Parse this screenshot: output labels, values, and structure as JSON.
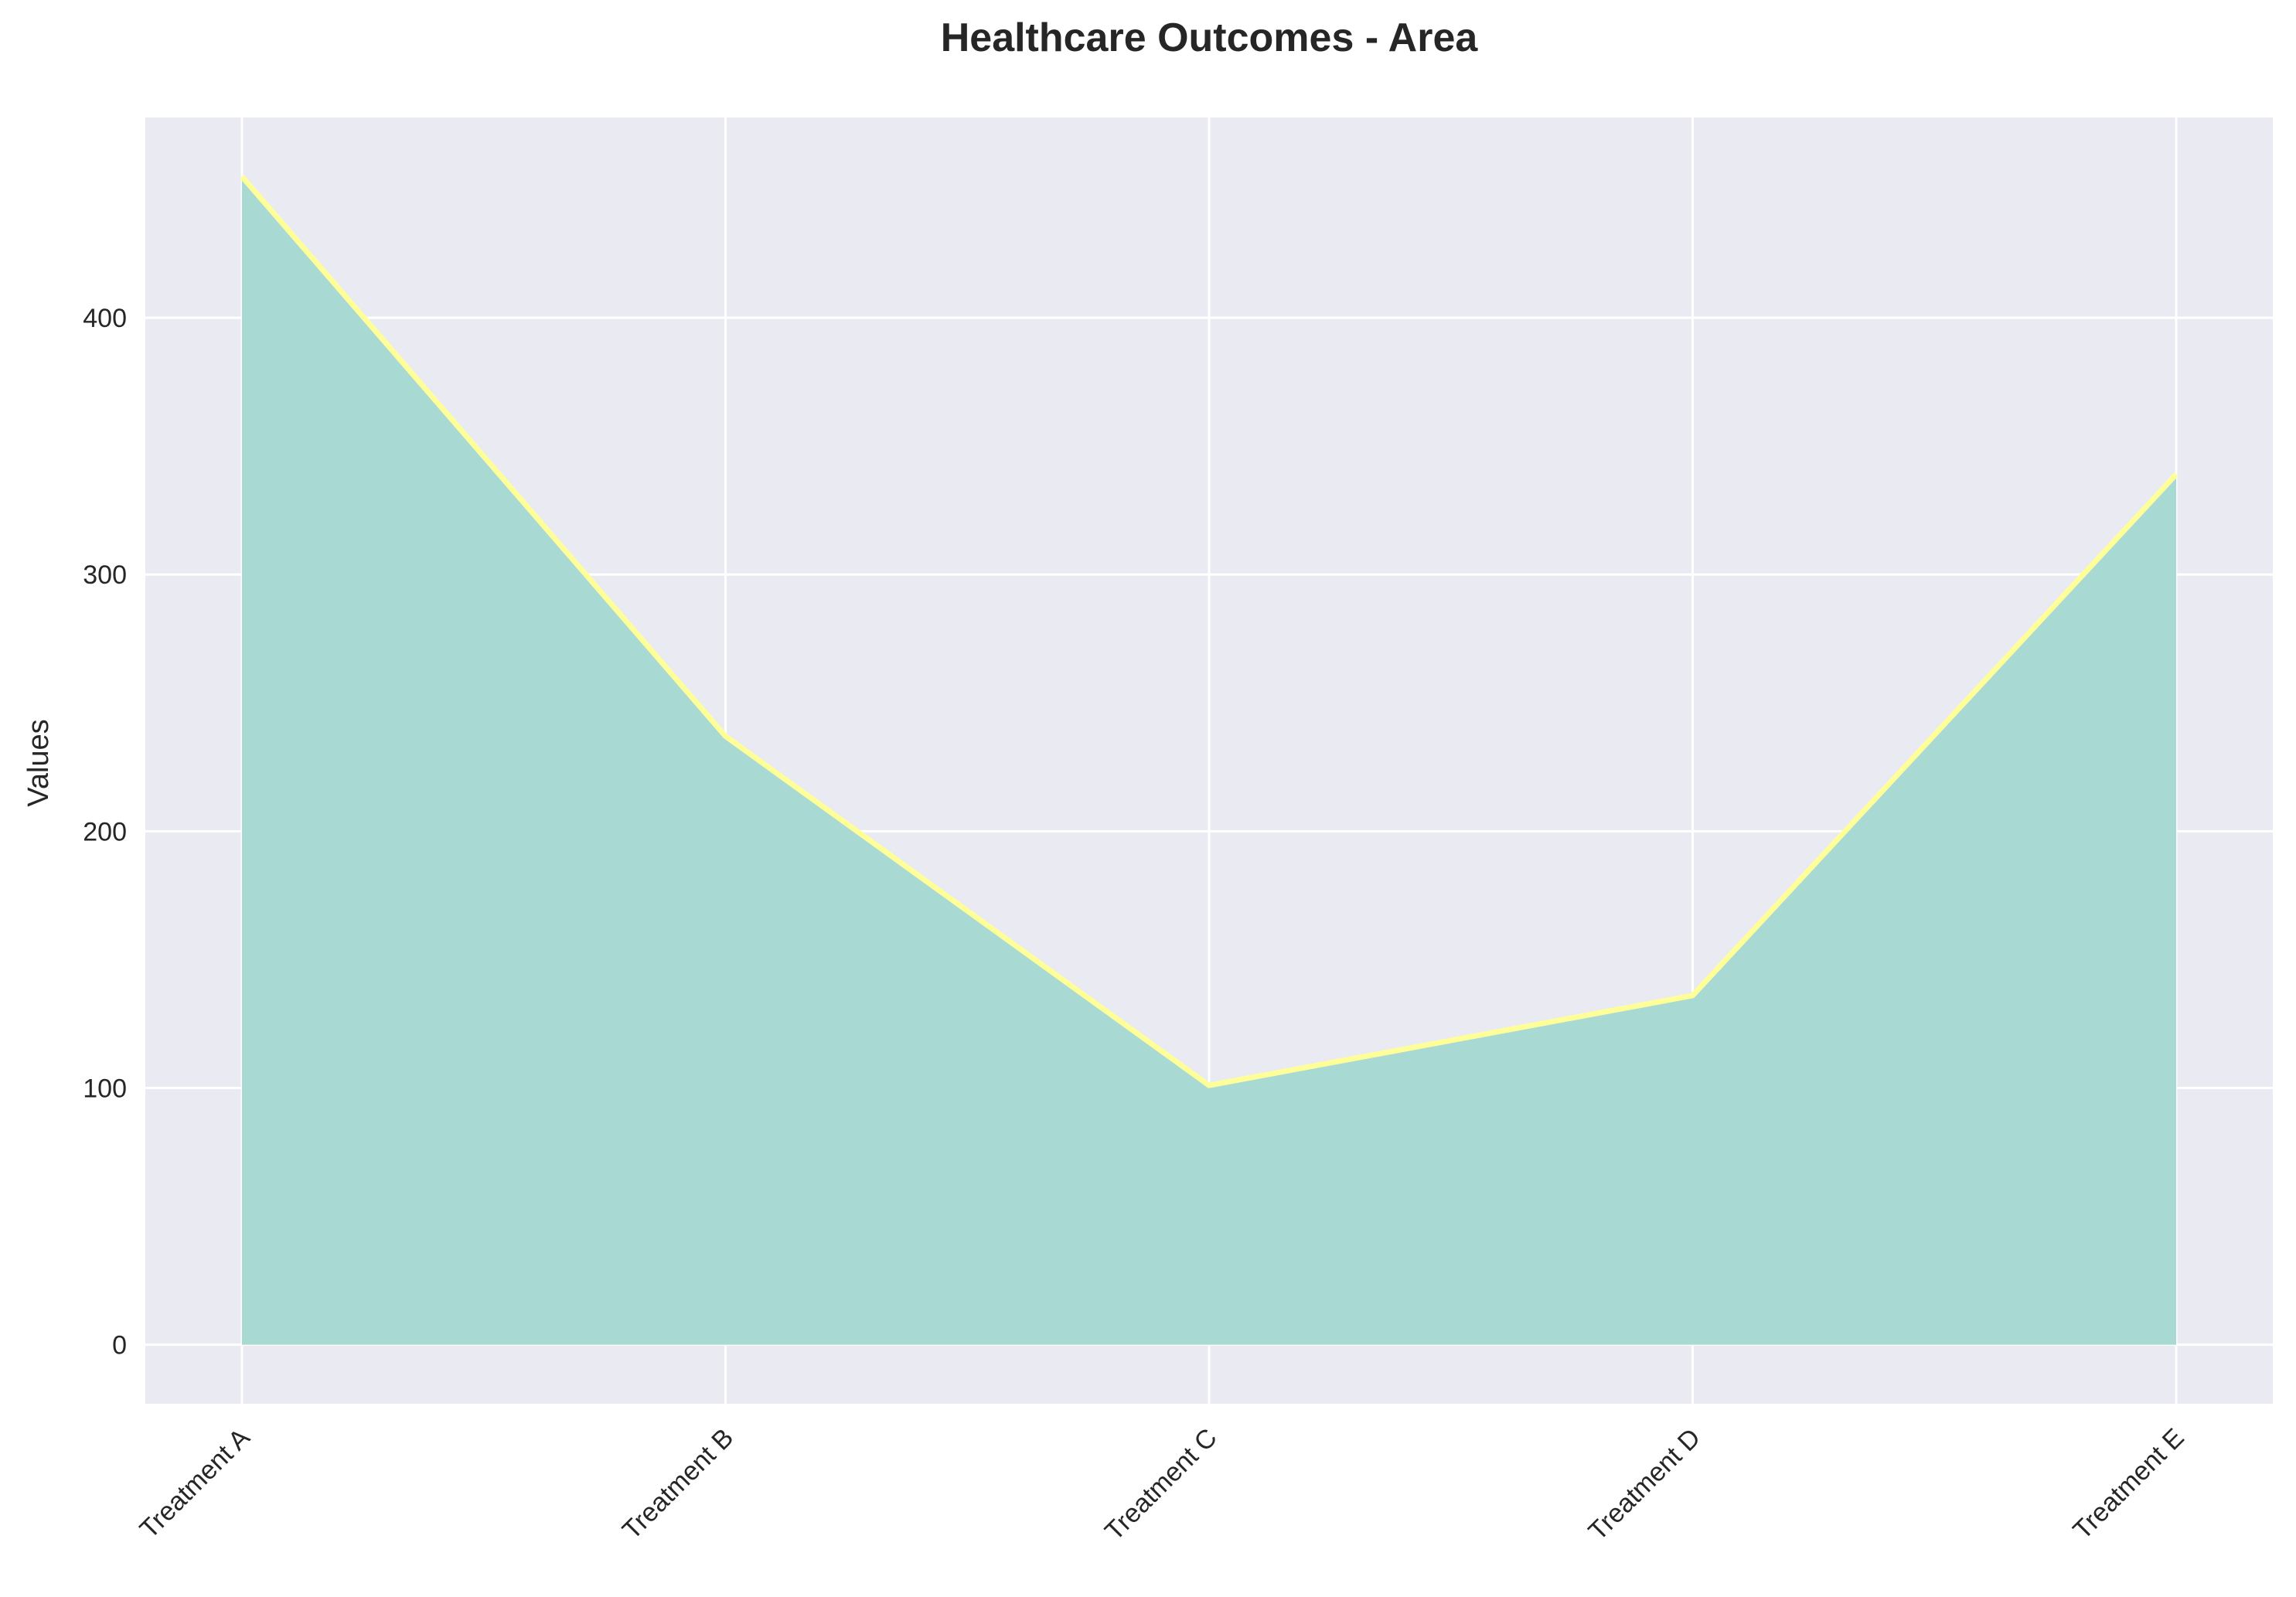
{
  "chart_data": {
    "type": "area",
    "title": "Healthcare Outcomes - Area",
    "xlabel": "",
    "ylabel": "Values",
    "categories": [
      "Treatment A",
      "Treatment B",
      "Treatment C",
      "Treatment D",
      "Treatment E"
    ],
    "series": [
      {
        "values": [
          455,
          237,
          101,
          136,
          339
        ]
      }
    ],
    "yticks": [
      0,
      100,
      200,
      300,
      400
    ],
    "ylim": [
      -23,
      478
    ],
    "grid": true,
    "legend": "none",
    "colors": {
      "figure_background": "#ffffff",
      "plot_background": "#eaeaf2",
      "grid": "#ffffff",
      "area_fill": "#a8d9d2",
      "line": "#ffff99",
      "text": "#262626"
    }
  }
}
